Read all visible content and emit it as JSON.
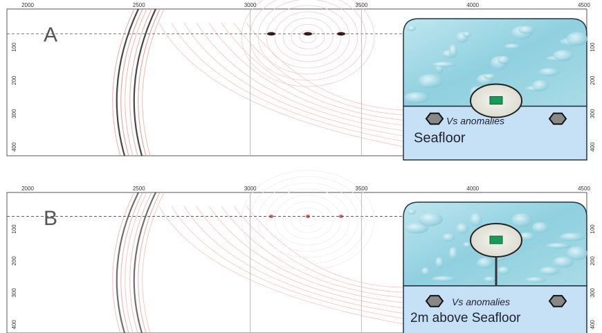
{
  "panels": [
    {
      "label": "A",
      "xticks": [
        2000,
        2500,
        3000,
        3500,
        4000,
        4500
      ],
      "yticks": [
        100,
        200,
        300,
        400
      ],
      "inset": {
        "anomaly_label": "Vs anomalies",
        "position_label": "Seafloor"
      }
    },
    {
      "label": "B",
      "xticks": [
        2000,
        2500,
        3000,
        3500,
        4000,
        4500
      ],
      "yticks": [
        100,
        200,
        300,
        400
      ],
      "inset": {
        "anomaly_label": "Vs anomalies",
        "position_label": "2m above Seafloor"
      }
    }
  ]
}
